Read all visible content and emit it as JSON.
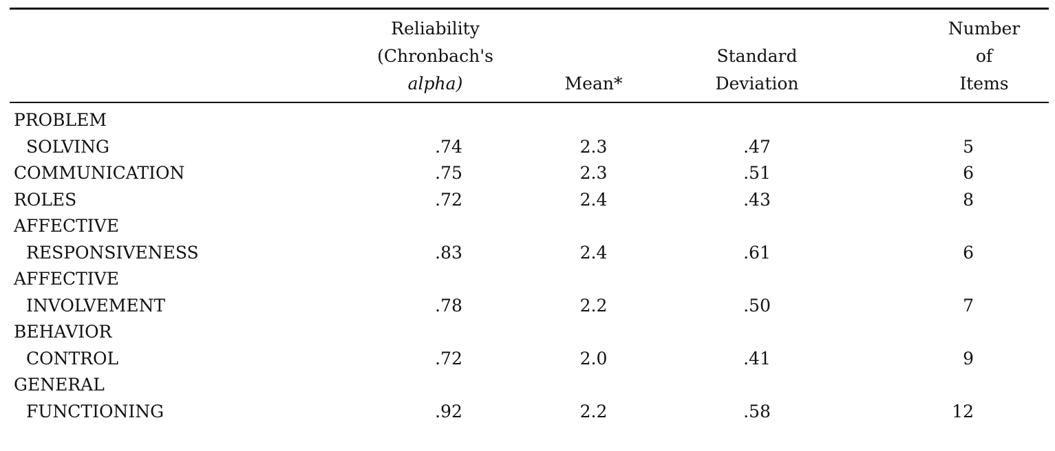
{
  "table": {
    "columns": [
      {
        "key": "scale",
        "label_lines": [
          ""
        ]
      },
      {
        "key": "reliability",
        "label_lines": [
          "Reliability",
          "(Chronbach's",
          "alpha)"
        ],
        "italic_line": 2
      },
      {
        "key": "mean",
        "label_lines": [
          "Mean*"
        ]
      },
      {
        "key": "sd",
        "label_lines": [
          "Standard",
          "Deviation"
        ]
      },
      {
        "key": "items",
        "label_lines": [
          "Number",
          "of",
          "Items"
        ]
      }
    ],
    "header": {
      "reliability_1": "Reliability",
      "reliability_2": "(Chronbach's",
      "reliability_3": "alpha)",
      "mean": "Mean*",
      "sd_1": "Standard",
      "sd_2": "Deviation",
      "items_1": "Number",
      "items_2": "of",
      "items_3": "Items"
    },
    "rows": [
      {
        "label_1": "PROBLEM",
        "label_2": "SOLVING",
        "reliability": ".74",
        "mean": "2.3",
        "sd": ".47",
        "items": "5"
      },
      {
        "label_1": "COMMUNICATION",
        "label_2": "",
        "reliability": ".75",
        "mean": "2.3",
        "sd": ".51",
        "items": "6"
      },
      {
        "label_1": "ROLES",
        "label_2": "",
        "reliability": ".72",
        "mean": "2.4",
        "sd": ".43",
        "items": "8"
      },
      {
        "label_1": "AFFECTIVE",
        "label_2": "RESPONSIVENESS",
        "reliability": ".83",
        "mean": "2.4",
        "sd": ".61",
        "items": "6"
      },
      {
        "label_1": "AFFECTIVE",
        "label_2": "INVOLVEMENT",
        "reliability": ".78",
        "mean": "2.2",
        "sd": ".50",
        "items": "7"
      },
      {
        "label_1": "BEHAVIOR",
        "label_2": "CONTROL",
        "reliability": ".72",
        "mean": "2.0",
        "sd": ".41",
        "items": "9"
      },
      {
        "label_1": "GENERAL",
        "label_2": "FUNCTIONING",
        "reliability": ".92",
        "mean": "2.2",
        "sd": ".58",
        "items": "12"
      }
    ]
  }
}
